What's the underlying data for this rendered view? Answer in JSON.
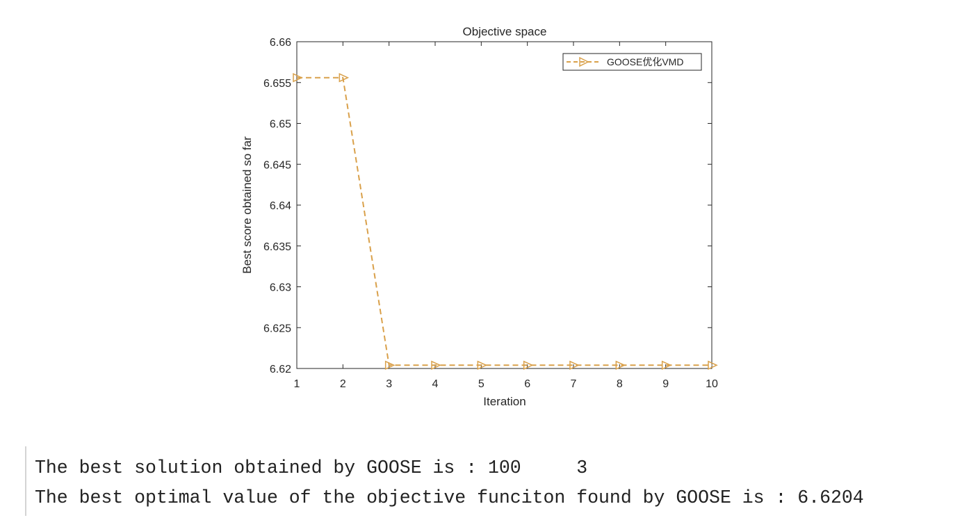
{
  "chart_data": {
    "type": "line",
    "title": "Objective space",
    "xlabel": "Iteration",
    "ylabel": "Best score obtained so far",
    "x": [
      1,
      2,
      3,
      4,
      5,
      6,
      7,
      8,
      9,
      10
    ],
    "xlim": [
      1,
      10
    ],
    "ylim": [
      6.62,
      6.66
    ],
    "x_ticks": [
      "1",
      "2",
      "3",
      "4",
      "5",
      "6",
      "7",
      "8",
      "9",
      "10"
    ],
    "y_ticks": [
      "6.62",
      "6.625",
      "6.63",
      "6.635",
      "6.64",
      "6.645",
      "6.65",
      "6.655",
      "6.66"
    ],
    "grid": false,
    "legend_position": "top-right",
    "series": [
      {
        "name": "GOOSE优化VMD",
        "color": "#D9A04A",
        "line_style": "dashed",
        "marker": "right-pointing-triangle",
        "values": [
          6.6556,
          6.6556,
          6.6204,
          6.6204,
          6.6204,
          6.6204,
          6.6204,
          6.6204,
          6.6204,
          6.6204
        ]
      }
    ]
  },
  "console": {
    "lines": [
      "The best solution obtained by GOOSE is : 100     3",
      "The best optimal value of the objective funciton found by GOOSE is : 6.6204"
    ]
  }
}
